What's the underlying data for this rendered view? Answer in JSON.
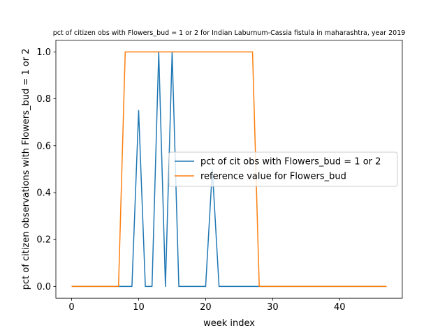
{
  "chart_data": {
    "type": "line",
    "title": "pct of citizen obs with Flowers_bud = 1 or 2 for Indian Laburnum-Cassia fistula in maharashtra, year 2019",
    "xlabel": "week index",
    "ylabel": "pct of citizen observations with Flowers_bud = 1 or 2",
    "xlim": [
      -2.35,
      49.35
    ],
    "ylim": [
      -0.05,
      1.05
    ],
    "xticks": [
      0,
      10,
      20,
      30,
      40
    ],
    "yticks": [
      0.0,
      0.2,
      0.4,
      0.6,
      0.8,
      1.0
    ],
    "xtick_labels": [
      "0",
      "10",
      "20",
      "30",
      "40"
    ],
    "ytick_labels": [
      "0.0",
      "0.2",
      "0.4",
      "0.6",
      "0.8",
      "1.0"
    ],
    "grid": false,
    "legend_position": "center-right",
    "x": [
      0,
      1,
      2,
      3,
      4,
      5,
      6,
      7,
      8,
      9,
      10,
      11,
      12,
      13,
      14,
      15,
      16,
      17,
      18,
      19,
      20,
      21,
      22,
      23,
      24,
      25,
      26,
      27,
      28,
      29,
      30,
      31,
      32,
      33,
      34,
      35,
      36,
      37,
      38,
      39,
      40,
      41,
      42,
      43,
      44,
      45,
      46,
      47
    ],
    "series": [
      {
        "name": "pct of cit obs with Flowers_bud = 1 or 2",
        "color": "#1f77b4",
        "values": [
          0,
          0,
          0,
          0,
          0,
          0,
          0,
          0,
          0,
          0,
          0.75,
          0,
          0,
          1.0,
          0,
          1.0,
          0,
          0,
          0,
          0,
          0,
          0.5,
          0,
          0,
          0,
          0,
          0,
          0,
          0,
          0,
          0,
          0,
          0,
          0,
          0,
          0,
          0,
          0,
          0,
          0,
          0,
          0,
          0,
          0,
          0,
          0,
          0,
          0
        ]
      },
      {
        "name": "reference value for Flowers_bud",
        "color": "#ff7f0e",
        "values": [
          0,
          0,
          0,
          0,
          0,
          0,
          0,
          0,
          1,
          1,
          1,
          1,
          1,
          1,
          1,
          1,
          1,
          1,
          1,
          1,
          1,
          1,
          1,
          1,
          1,
          1,
          1,
          1,
          0,
          0,
          0,
          0,
          0,
          0,
          0,
          0,
          0,
          0,
          0,
          0,
          0,
          0,
          0,
          0,
          0,
          0,
          0,
          0
        ]
      }
    ]
  }
}
